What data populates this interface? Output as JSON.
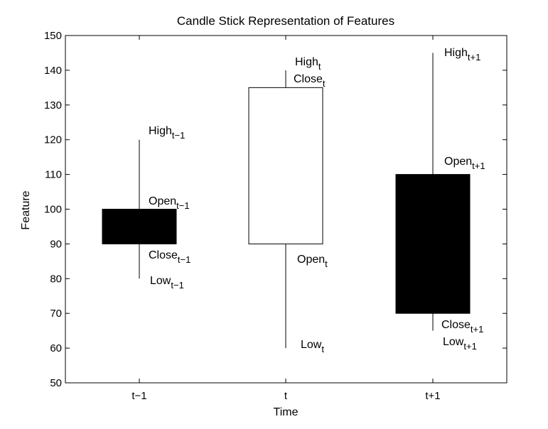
{
  "chart_data": {
    "type": "candlestick",
    "title": "Candle Stick Representation of Features",
    "xlabel": "Time",
    "ylabel": "Feature",
    "ylim": [
      50,
      150
    ],
    "yticks": [
      50,
      60,
      70,
      80,
      90,
      100,
      110,
      120,
      130,
      140,
      150
    ],
    "categories": [
      "t−1",
      "t",
      "t+1"
    ],
    "grid": false,
    "colors": {
      "bearish": "#000000",
      "bullish": "#ffffff",
      "wick": "#000000"
    },
    "candles": [
      {
        "category": "t−1",
        "open": 100,
        "high": 120,
        "low": 80,
        "close": 90,
        "labels": {
          "high": {
            "base": "High",
            "sub": "t−1"
          },
          "open": {
            "base": "Open",
            "sub": "t−1"
          },
          "close": {
            "base": "Close",
            "sub": "t−1"
          },
          "low": {
            "base": "Low",
            "sub": "t−1"
          }
        }
      },
      {
        "category": "t",
        "open": 90,
        "high": 140,
        "low": 60,
        "close": 135,
        "labels": {
          "high": {
            "base": "High",
            "sub": "t"
          },
          "close": {
            "base": "Close",
            "sub": "t"
          },
          "open": {
            "base": "Open",
            "sub": "t"
          },
          "low": {
            "base": "Low",
            "sub": "t"
          }
        }
      },
      {
        "category": "t+1",
        "open": 110,
        "high": 145,
        "low": 65,
        "close": 70,
        "labels": {
          "high": {
            "base": "High",
            "sub": "t+1"
          },
          "open": {
            "base": "Open",
            "sub": "t+1"
          },
          "close": {
            "base": "Close",
            "sub": "t+1"
          },
          "low": {
            "base": "Low",
            "sub": "t+1"
          }
        }
      }
    ]
  }
}
